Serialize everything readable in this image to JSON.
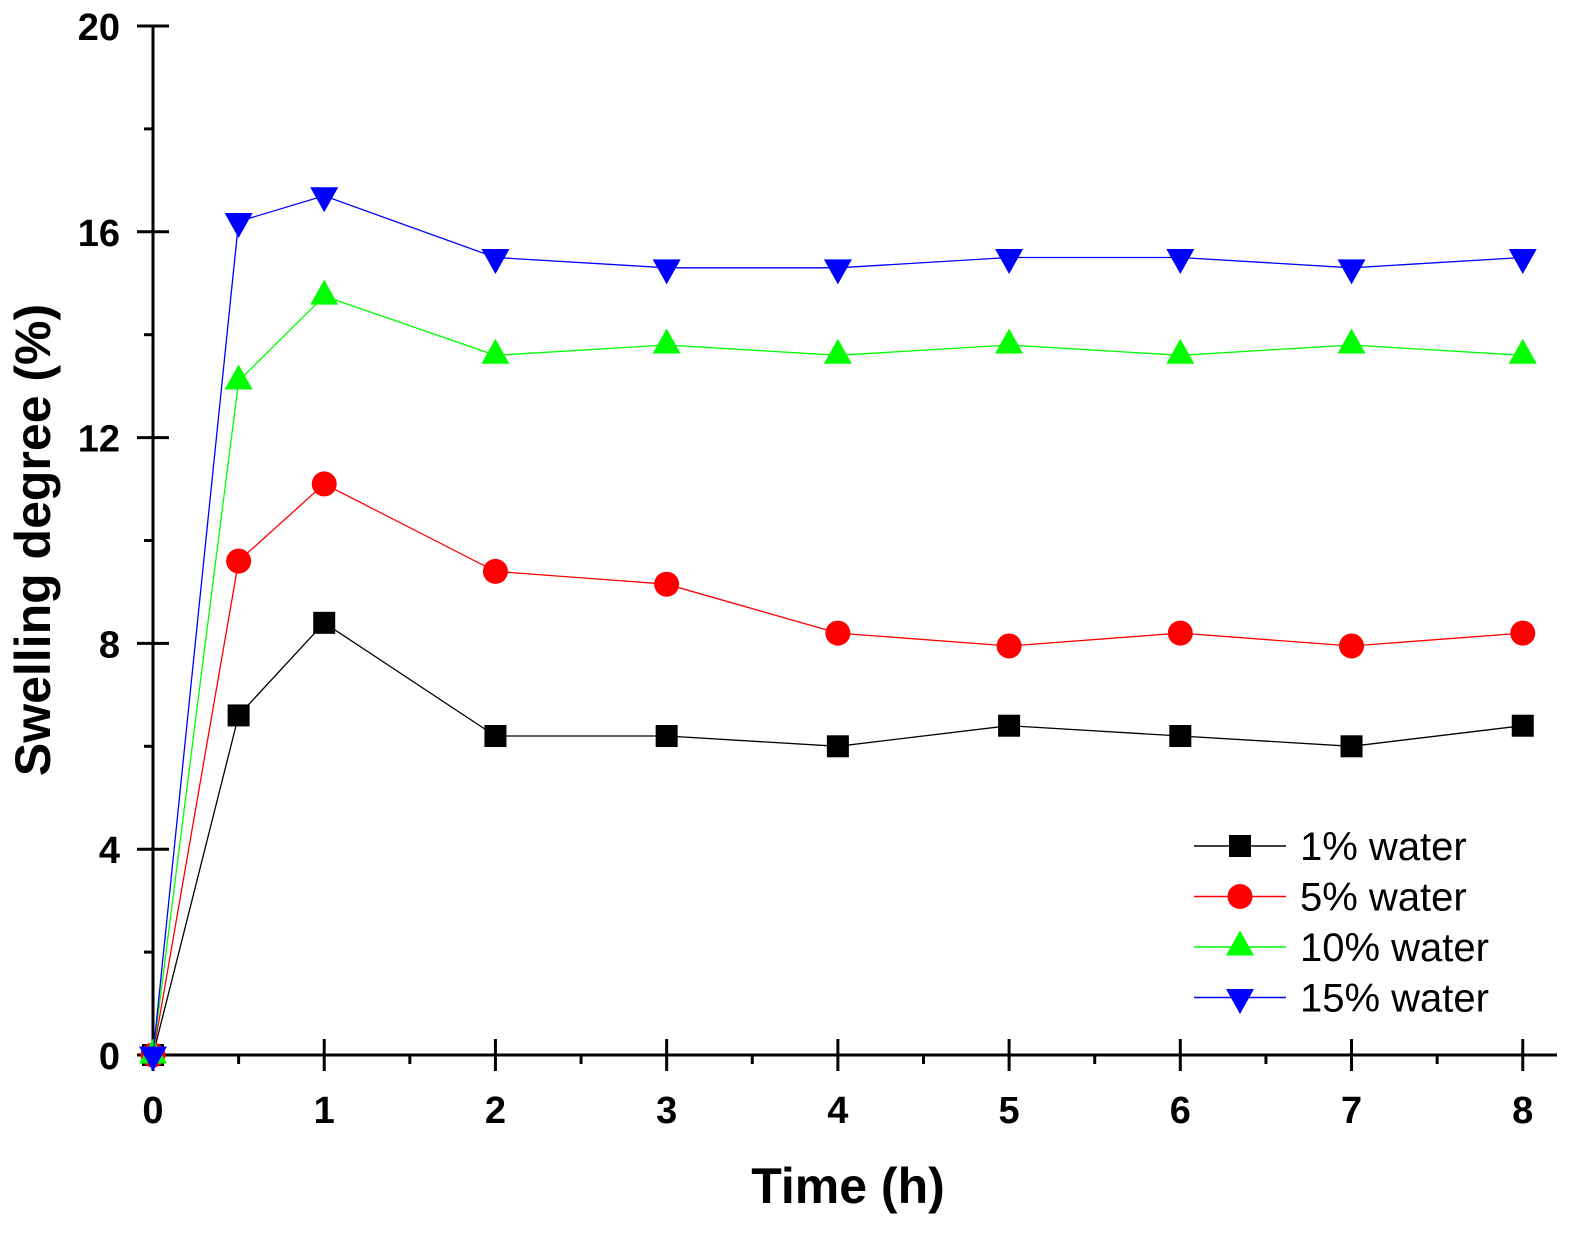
{
  "chart_data": {
    "type": "line",
    "xlabel": "Time (h)",
    "ylabel": "Swelling degree (%)",
    "xlim": [
      0,
      8.2
    ],
    "ylim": [
      0,
      20
    ],
    "xticks": [
      0,
      1,
      2,
      3,
      4,
      5,
      6,
      7,
      8
    ],
    "yticks": [
      0,
      4,
      8,
      12,
      16,
      20
    ],
    "x_minor_step": 0.5,
    "y_minor_step": 2,
    "grid": false,
    "legend": "bottom-right",
    "x": [
      0,
      0.5,
      1,
      2,
      3,
      4,
      5,
      6,
      7,
      8
    ],
    "series": [
      {
        "name": "1% water",
        "color": "#000000",
        "marker": "square-marker",
        "values": [
          0,
          6.6,
          8.4,
          6.2,
          6.2,
          6.0,
          6.4,
          6.2,
          6.0,
          6.4
        ]
      },
      {
        "name": "5% water",
        "color": "#ff0000",
        "marker": "circle-marker",
        "values": [
          0,
          9.6,
          11.1,
          9.4,
          9.15,
          8.2,
          7.95,
          8.2,
          7.95,
          8.2
        ]
      },
      {
        "name": "10% water",
        "color": "#00ff00",
        "marker": "triangle-up-marker",
        "values": [
          0,
          13.1,
          14.75,
          13.6,
          13.8,
          13.6,
          13.8,
          13.6,
          13.8,
          13.6
        ]
      },
      {
        "name": "15% water",
        "color": "#0000ff",
        "marker": "triangle-down-marker",
        "values": [
          0,
          16.2,
          16.7,
          15.5,
          15.3,
          15.3,
          15.5,
          15.5,
          15.3,
          15.5
        ]
      }
    ]
  }
}
